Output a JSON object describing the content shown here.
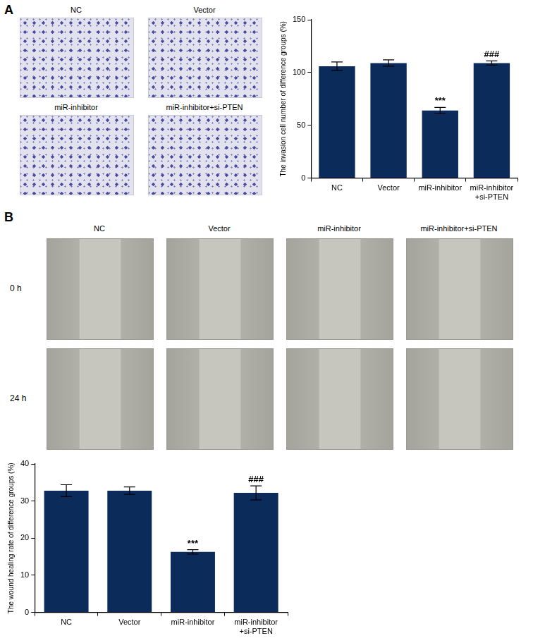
{
  "chart_data": [
    {
      "type": "bar",
      "categories": [
        "NC",
        "Vector",
        "miR-inhibitor",
        "miR-inhibitor+si-PTEN"
      ],
      "values": [
        106,
        109,
        64,
        109
      ],
      "errors": [
        4,
        3,
        3,
        2
      ],
      "color": "#0b2b5a",
      "y_label": "The invasion cell number of difference groups (%)",
      "ylim": [
        0,
        150
      ],
      "yticks": [
        0,
        50,
        100,
        150
      ],
      "grid": false,
      "annotations": [
        {
          "x": "miR-inhibitor",
          "text": "***"
        },
        {
          "x": "miR-inhibitor+si-PTEN",
          "text": "###"
        }
      ]
    },
    {
      "type": "bar",
      "categories": [
        "NC",
        "Vector",
        "miR-inhibitor",
        "miR-inhibitor+si-PTEN"
      ],
      "values": [
        32.8,
        32.8,
        16.3,
        32.2
      ],
      "errors": [
        1.6,
        1.0,
        0.6,
        1.9
      ],
      "color": "#0b2b5a",
      "y_label": "The wound healing rate of difference groups (%)",
      "ylim": [
        0,
        40
      ],
      "yticks": [
        0,
        10,
        20,
        30,
        40
      ],
      "grid": false,
      "annotations": [
        {
          "x": "miR-inhibitor",
          "text": "***"
        },
        {
          "x": "miR-inhibitor+si-PTEN",
          "text": "###"
        }
      ]
    }
  ],
  "panels": [
    {
      "label": "A",
      "image_titles": [
        "NC",
        "Vector",
        "miR-inhibitor",
        "miR-inhibitor+si-PTEN"
      ]
    },
    {
      "label": "B",
      "image_titles": [
        "NC",
        "Vector",
        "miR-inhibitor",
        "miR-inhibitor+si-PTEN"
      ],
      "row_labels": [
        "0 h",
        "24 h"
      ]
    }
  ]
}
